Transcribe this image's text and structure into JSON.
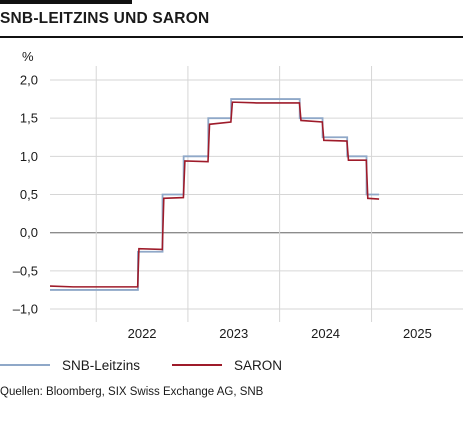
{
  "header": {
    "title": "SNB-LEITZINS UND SARON"
  },
  "source": "Quellen: Bloomberg, SIX Swiss Exchange AG, SNB",
  "chart_data": {
    "type": "line",
    "title": "SNB-LEITZINS UND SARON",
    "ylabel": "%",
    "xlabel": "",
    "ylim": [
      -1.0,
      2.0
    ],
    "xlim": [
      "2021-07-01",
      "2025-12-31"
    ],
    "yticks": [
      -1.0,
      -0.5,
      0.0,
      0.5,
      1.0,
      1.5,
      2.0
    ],
    "ytick_labels": [
      "–1,0",
      "–0,5",
      "0,0",
      "0,5",
      "1,0",
      "1,5",
      "2,0"
    ],
    "xtick_labels": [
      "2022",
      "2023",
      "2024",
      "2025"
    ],
    "grid": true,
    "legend": "bottom",
    "series": [
      {
        "name": "SNB-Leitzins",
        "color": "#8fa8c8",
        "type": "step",
        "x": [
          "2021-07-01",
          "2022-06-16",
          "2022-09-22",
          "2022-12-15",
          "2023-03-23",
          "2023-06-22",
          "2024-03-21",
          "2024-06-20",
          "2024-09-26",
          "2024-12-12",
          "2025-01-31"
        ],
        "y": [
          -0.75,
          -0.25,
          0.5,
          1.0,
          1.5,
          1.75,
          1.5,
          1.25,
          1.0,
          0.5,
          0.5
        ]
      },
      {
        "name": "SARON",
        "color": "#9e1b2a",
        "x": [
          "2021-07-01",
          "2021-10-01",
          "2022-01-01",
          "2022-04-01",
          "2022-06-15",
          "2022-06-20",
          "2022-09-21",
          "2022-09-27",
          "2022-12-14",
          "2022-12-20",
          "2023-03-22",
          "2023-03-28",
          "2023-06-21",
          "2023-06-27",
          "2023-10-01",
          "2024-03-20",
          "2024-03-26",
          "2024-06-19",
          "2024-06-25",
          "2024-09-25",
          "2024-10-01",
          "2024-12-11",
          "2024-12-17",
          "2025-01-31"
        ],
        "y": [
          -0.7,
          -0.71,
          -0.71,
          -0.71,
          -0.71,
          -0.21,
          -0.22,
          0.45,
          0.46,
          0.94,
          0.93,
          1.42,
          1.45,
          1.71,
          1.7,
          1.7,
          1.47,
          1.45,
          1.21,
          1.2,
          0.95,
          0.95,
          0.45,
          0.44
        ]
      }
    ]
  }
}
